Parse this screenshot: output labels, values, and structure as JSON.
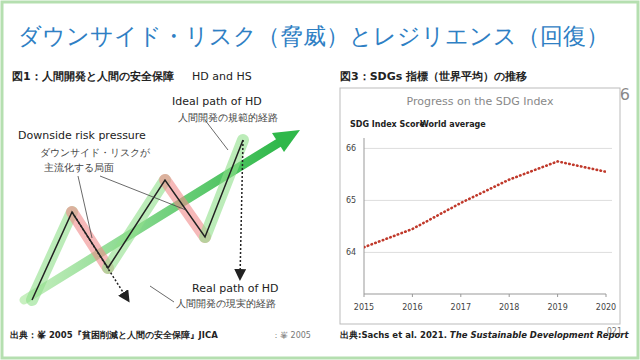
{
  "slide": {
    "title": "ダウンサイド・リスク（脅威）とレジリエンス（回復）",
    "page_number": "6",
    "corner_text": "021"
  },
  "figure1": {
    "caption": "図1：人間開発と人間の安全保障",
    "label_en": "HD and HS",
    "ideal_path_en": "Ideal path of HD",
    "ideal_path_ja": "人間開発の規範的経路",
    "downside_en": "Downside risk pressure",
    "downside_ja": [
      "ダウンサイド・リスクが",
      "主流化する局面"
    ],
    "real_path_en": "Real path of HD",
    "real_path_ja": "人間開発の現実的経路",
    "source": "出典：峯 2005『貧困削減と人間の安全保障』JICA",
    "source_right": "：峯 2005"
  },
  "chart_data": {
    "type": "line",
    "caption": "図3：SDGs 指標（世界平均）の推移",
    "title": "Progress on the SDG Index",
    "y_label": "SDG Index Score",
    "x": [
      2015,
      2016,
      2017,
      2018,
      2019,
      2020
    ],
    "series": [
      {
        "name": "World average",
        "color": "#c0392b",
        "line_style": "dotted",
        "values": [
          64.1,
          64.45,
          64.95,
          65.4,
          65.75,
          65.55
        ]
      }
    ],
    "xlim": [
      2015,
      2020
    ],
    "xticks": [
      2015,
      2016,
      2017,
      2018,
      2019,
      2020
    ],
    "ylim": [
      63.2,
      66.2
    ],
    "yticks": [
      64,
      65,
      66
    ],
    "grid": true,
    "source": [
      "出典:Sachs et al. 2021. ",
      "The Sustainable Development Report"
    ]
  }
}
